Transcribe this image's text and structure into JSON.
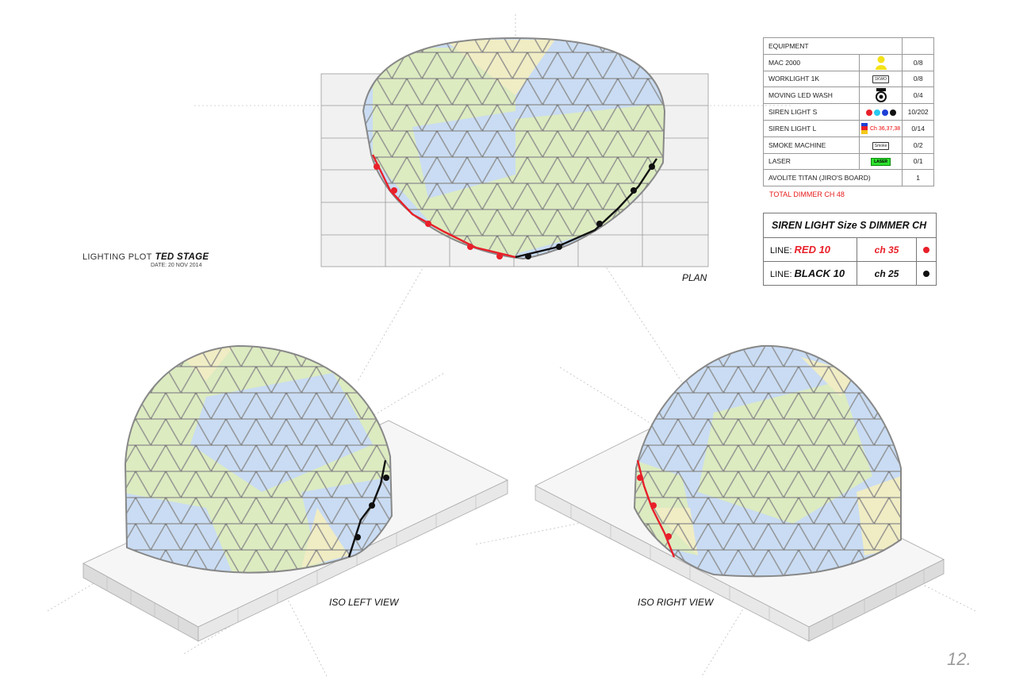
{
  "plot": {
    "label": "LIGHTING PLOT",
    "venue": "TED STAGE",
    "date": "DATE: 20 NOV 2014"
  },
  "views": {
    "plan": "PLAN",
    "iso_left": "ISO LEFT VIEW",
    "iso_right": "ISO RIGHT VIEW"
  },
  "equipment": {
    "header": "EQUIPMENT",
    "items": [
      {
        "name": "MAC 2000",
        "icon": "mac2000-person-icon",
        "qty": "0/8"
      },
      {
        "name": "WORKLIGHT 1K",
        "icon": "worklight-icon",
        "icon_text": "1KWO",
        "qty": "0/8"
      },
      {
        "name": "MOVING LED WASH",
        "icon": "moving-wash-icon",
        "qty": "0/4"
      },
      {
        "name": "SIREN LIGHT S",
        "icon": "siren-dots-icon",
        "dot_colors": [
          "#e8202a",
          "#29c9f0",
          "#1d3fd6",
          "#111111"
        ],
        "qty": "10/202"
      },
      {
        "name": "SIREN LIGHT L",
        "icon": "siren-large-icon",
        "icon_text": "Ch 36,37,38",
        "qty": "0/14"
      },
      {
        "name": "SMOKE MACHINE",
        "icon": "smoke-machine-icon",
        "icon_text": "Smoke",
        "qty": "0/2"
      },
      {
        "name": "LASER",
        "icon": "laser-icon",
        "icon_text": "LASER",
        "qty": "0/1"
      },
      {
        "name": "AVOLITE TITAN (JIRO'S BOARD)",
        "icon": "",
        "qty": "1"
      }
    ],
    "total": "TOTAL DIMMER CH 48"
  },
  "siren_table": {
    "title": "SIREN LIGHT Size S DIMMER CH",
    "rows": [
      {
        "line_label": "LINE:",
        "line_value": "RED 10",
        "channel": "ch 35",
        "color": "#e8202a"
      },
      {
        "line_label": "LINE:",
        "line_value": "BLACK 10",
        "channel": "ch 25",
        "color": "#111111"
      }
    ]
  },
  "page_number": "12.",
  "colors": {
    "red_line": "#e8202a",
    "black_line": "#111111",
    "panel_blue": "#c9dcf3",
    "panel_green": "#dcebc0",
    "panel_yellow": "#f0ecc4",
    "strut": "#8d8d8d"
  }
}
